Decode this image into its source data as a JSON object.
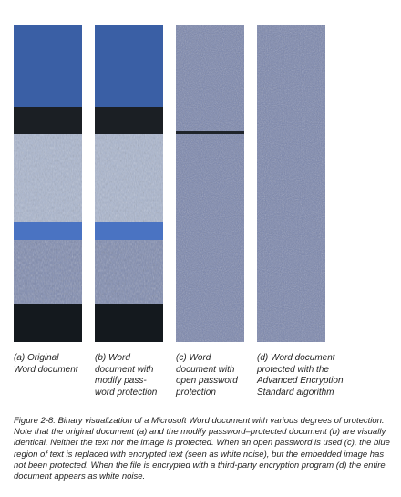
{
  "panels": [
    {
      "id": "a",
      "caption": "(a) Original\nWord document"
    },
    {
      "id": "b",
      "caption": "(b) Word\ndocument with\nmodify pass-\nword protection"
    },
    {
      "id": "c",
      "caption": "(c) Word\ndocument with\nopen password\nprotection"
    },
    {
      "id": "d",
      "caption": "(d) Word document\nprotected with the\nAdvanced Encryption\nStandard algorithm"
    }
  ],
  "figure_caption": "Figure 2-8: Binary visualization of a Microsoft Word document with various degrees of protection. Note that the original document (a) and the modify password–protected document (b) are visually identical. Neither the text nor the image is protected. When an open password is used (c), the blue region of text is replaced with encrypted text (seen as white noise), but the embedded image has not been protected. When the file is encrypted with a third-party encryption program (d) the entire document appears as white noise.",
  "colors": {
    "blue_region": "#3a5fa5",
    "noise_base": "#7a87ae",
    "black_region": "#151a1f",
    "image_band": "#b9c4d8",
    "blue_band": "#5278c4"
  }
}
